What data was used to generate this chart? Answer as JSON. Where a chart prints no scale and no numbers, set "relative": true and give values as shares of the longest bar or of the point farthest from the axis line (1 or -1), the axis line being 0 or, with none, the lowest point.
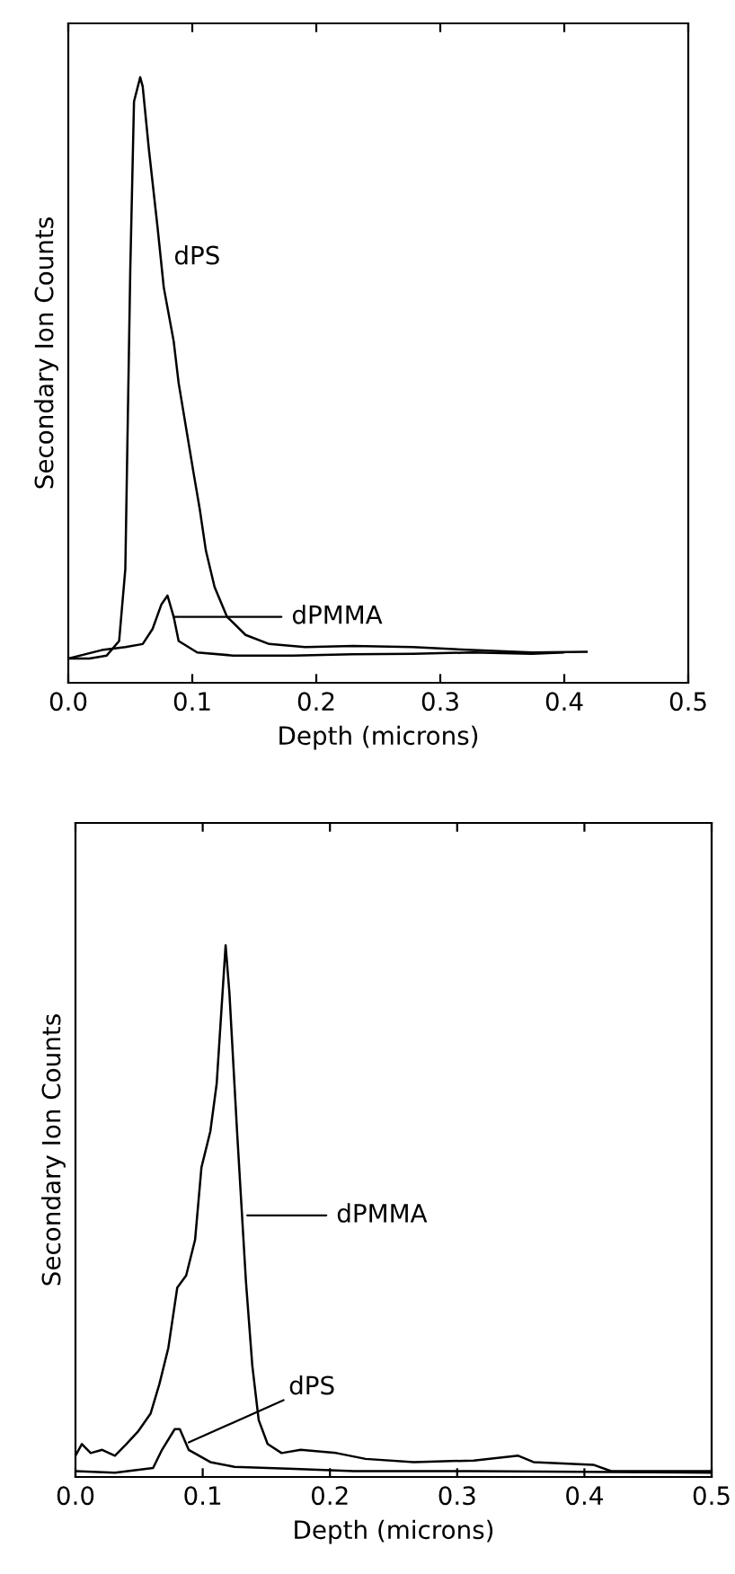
{
  "chart_data": [
    {
      "type": "line",
      "relative": true,
      "xlabel": "Depth (microns)",
      "ylabel": "Secondary Ion Counts",
      "xlim": [
        0.0,
        0.5
      ],
      "xticks": [
        {
          "value": 0.0,
          "label": "0.0"
        },
        0.1,
        0.2,
        0.3,
        0.4,
        0.5
      ],
      "tick_labels": "x",
      "grid": false,
      "legend": false,
      "marker": "none",
      "line_style": "solid",
      "series": [
        {
          "color": "#000000",
          "x": [
            0.0,
            0.017,
            0.031,
            0.041,
            0.046,
            0.048,
            0.05,
            0.053,
            0.058,
            0.06,
            0.065,
            0.072,
            0.077,
            0.085,
            0.089,
            0.101,
            0.106,
            0.111,
            0.118,
            0.128,
            0.143,
            0.162,
            0.191,
            0.23,
            0.278,
            0.326,
            0.374,
            0.418
          ],
          "values": [
            0.04,
            0.04,
            0.045,
            0.069,
            0.188,
            0.436,
            0.683,
            0.96,
            1.0,
            0.985,
            0.881,
            0.752,
            0.653,
            0.564,
            0.495,
            0.347,
            0.287,
            0.218,
            0.158,
            0.109,
            0.079,
            0.064,
            0.059,
            0.061,
            0.059,
            0.054,
            0.05,
            0.051
          ]
        },
        {
          "color": "#000000",
          "x": [
            0.0,
            0.027,
            0.046,
            0.06,
            0.068,
            0.075,
            0.08,
            0.085,
            0.089,
            0.104,
            0.133,
            0.181,
            0.229,
            0.278,
            0.326,
            0.374,
            0.399
          ],
          "values": [
            0.04,
            0.054,
            0.059,
            0.064,
            0.089,
            0.129,
            0.144,
            0.109,
            0.069,
            0.05,
            0.045,
            0.045,
            0.047,
            0.048,
            0.05,
            0.048,
            0.05
          ]
        }
      ],
      "annotations": [
        {
          "text": "dPS",
          "x": 0.077,
          "y": 0.653
        },
        "dPMMA"
      ]
    },
    {
      "type": "line",
      "relative": true,
      "xlabel": "Depth (microns)",
      "ylabel": "Secondary Ion Counts",
      "xlim": [
        0.0,
        0.5
      ],
      "xticks": [
        {
          "value": 0.0,
          "label": "0.0"
        },
        0.1,
        0.2,
        0.3,
        0.4,
        0.5
      ],
      "tick_labels": "x",
      "grid": false,
      "legend": false,
      "marker": "none",
      "line_style": "solid",
      "series": [
        {
          "color": "#000000",
          "x": [
            0.0,
            0.005,
            0.012,
            0.021,
            0.031,
            0.04,
            0.049,
            0.059,
            0.066,
            0.073,
            0.08,
            0.087,
            0.094,
            0.099,
            0.106,
            0.111,
            0.118,
            0.121,
            0.127,
            0.134,
            0.139,
            0.144,
            0.151,
            0.162,
            0.177,
            0.205,
            0.228,
            0.266,
            0.313,
            0.348,
            0.36,
            0.407,
            0.421,
            0.454,
            0.499
          ],
          "values": [
            0.04,
            0.062,
            0.045,
            0.051,
            0.04,
            0.062,
            0.085,
            0.119,
            0.175,
            0.243,
            0.356,
            0.379,
            0.446,
            0.582,
            0.65,
            0.74,
            1.0,
            0.91,
            0.65,
            0.367,
            0.209,
            0.107,
            0.062,
            0.045,
            0.051,
            0.045,
            0.034,
            0.028,
            0.031,
            0.04,
            0.028,
            0.023,
            0.011,
            0.011,
            0.011
          ]
        },
        {
          "color": "#000000",
          "x": [
            0.0,
            0.031,
            0.061,
            0.068,
            0.078,
            0.082,
            0.089,
            0.106,
            0.125,
            0.172,
            0.219,
            0.313,
            0.499
          ],
          "values": [
            0.011,
            0.008,
            0.017,
            0.051,
            0.09,
            0.09,
            0.051,
            0.028,
            0.019,
            0.015,
            0.011,
            0.011,
            0.008
          ]
        }
      ],
      "annotations": [
        "dPMMA",
        {
          "text": "dPS",
          "x": 0.089,
          "y": 0.065
        }
      ]
    }
  ]
}
